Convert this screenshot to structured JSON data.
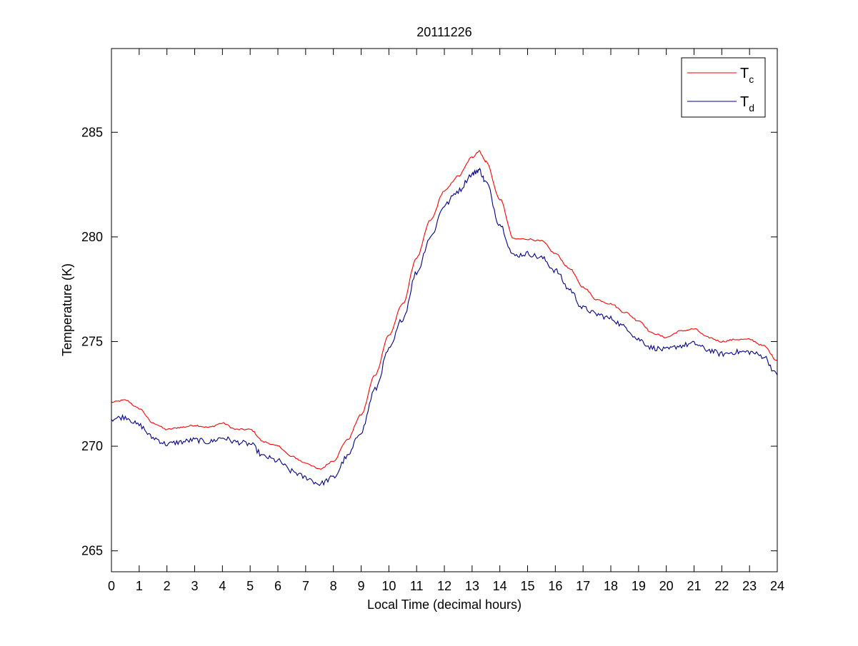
{
  "chart_data": {
    "type": "line",
    "title": "20111226",
    "xlabel": "Local Time (decimal hours)",
    "ylabel": "Temperature (K)",
    "xlim": [
      0,
      24
    ],
    "ylim": [
      264,
      289
    ],
    "x_ticks": [
      0,
      1,
      2,
      3,
      4,
      5,
      6,
      7,
      8,
      9,
      10,
      11,
      12,
      13,
      14,
      15,
      16,
      17,
      18,
      19,
      20,
      21,
      22,
      23,
      24
    ],
    "x_tick_labels": [
      "0",
      "1",
      "2",
      "3",
      "4",
      "5",
      "6",
      "7",
      "8",
      "9",
      "10",
      "11",
      "12",
      "13",
      "14",
      "15",
      "16",
      "17",
      "18",
      "19",
      "20",
      "21",
      "22",
      "23",
      "24"
    ],
    "y_ticks": [
      265,
      270,
      275,
      280,
      285
    ],
    "y_tick_labels": [
      "265",
      "270",
      "275",
      "280",
      "285"
    ],
    "grid": false,
    "legend_position": "top-right",
    "series": [
      {
        "name_main": "T",
        "name_sub": "c",
        "color": "#ff0000",
        "x": [
          0,
          0.5,
          1,
          1.5,
          2,
          2.5,
          3,
          3.5,
          4,
          4.5,
          5,
          5.5,
          6,
          6.5,
          7,
          7.5,
          8,
          8.5,
          9,
          9.5,
          10,
          10.5,
          11,
          11.5,
          12,
          12.5,
          13,
          13.25,
          13.5,
          14,
          14.5,
          15,
          15.5,
          16,
          16.5,
          17,
          17.5,
          18,
          18.5,
          19,
          19.5,
          20,
          20.5,
          21,
          21.5,
          22,
          22.5,
          23,
          23.5,
          24
        ],
        "y": [
          272.1,
          272.2,
          271.8,
          271.1,
          270.8,
          270.9,
          271.0,
          270.9,
          271.1,
          270.8,
          270.8,
          270.2,
          270.0,
          269.5,
          269.2,
          268.9,
          269.3,
          270.3,
          271.5,
          273.4,
          275.3,
          276.8,
          279.0,
          280.8,
          282.2,
          282.9,
          283.8,
          284.1,
          283.6,
          281.8,
          279.9,
          279.9,
          279.8,
          279.2,
          278.5,
          277.6,
          277.0,
          276.8,
          276.4,
          276.0,
          275.4,
          275.2,
          275.5,
          275.6,
          275.2,
          275.0,
          275.1,
          275.1,
          274.8,
          274.1
        ]
      },
      {
        "name_main": "T",
        "name_sub": "d",
        "color": "#00008b",
        "x": [
          0,
          0.5,
          1,
          1.5,
          2,
          2.5,
          3,
          3.5,
          4,
          4.5,
          5,
          5.5,
          6,
          6.5,
          7,
          7.5,
          8,
          8.5,
          9,
          9.5,
          10,
          10.5,
          11,
          11.5,
          12,
          12.5,
          13,
          13.25,
          13.5,
          14,
          14.5,
          15,
          15.5,
          16,
          16.5,
          17,
          17.5,
          18,
          18.5,
          19,
          19.5,
          20,
          20.5,
          21,
          21.5,
          22,
          22.5,
          23,
          23.5,
          24
        ],
        "y": [
          271.3,
          271.4,
          271.0,
          270.4,
          270.1,
          270.2,
          270.3,
          270.2,
          270.4,
          270.2,
          270.1,
          269.5,
          269.3,
          268.8,
          268.5,
          268.2,
          268.5,
          269.5,
          270.7,
          272.7,
          274.6,
          276.1,
          278.3,
          280.0,
          281.5,
          282.2,
          283.0,
          283.2,
          282.6,
          280.6,
          279.1,
          279.2,
          279.0,
          278.4,
          277.5,
          276.6,
          276.3,
          276.1,
          275.7,
          275.1,
          274.7,
          274.6,
          274.8,
          274.9,
          274.6,
          274.4,
          274.5,
          274.5,
          274.3,
          273.4
        ]
      }
    ]
  }
}
